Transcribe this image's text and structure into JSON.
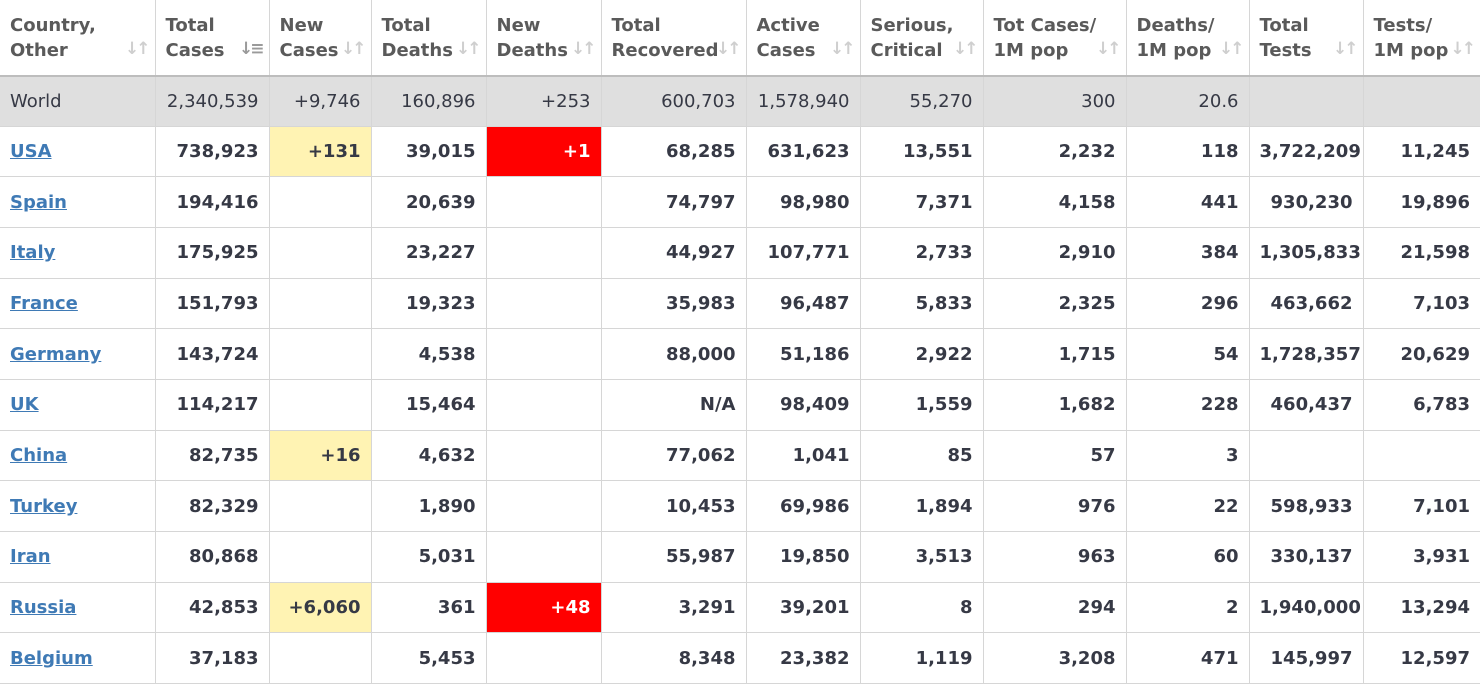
{
  "columns": [
    {
      "line1": "Country,",
      "line2": "Other"
    },
    {
      "line1": "Total",
      "line2": "Cases"
    },
    {
      "line1": "New",
      "line2": "Cases"
    },
    {
      "line1": "Total",
      "line2": "Deaths"
    },
    {
      "line1": "New",
      "line2": "Deaths"
    },
    {
      "line1": "Total",
      "line2": "Recovered"
    },
    {
      "line1": "Active",
      "line2": "Cases"
    },
    {
      "line1": "Serious,",
      "line2": "Critical"
    },
    {
      "line1": "Tot Cases/",
      "line2": "1M pop"
    },
    {
      "line1": "Deaths/",
      "line2": "1M pop"
    },
    {
      "line1": "Total",
      "line2": "Tests"
    },
    {
      "line1": "Tests/",
      "line2": "1M pop"
    }
  ],
  "sort_icon": "sort-arrows-icon",
  "active_sort_column": 1,
  "colors": {
    "link": "#3f7ab5",
    "new_cases_highlight": "#fff3b3",
    "new_deaths_highlight": "#ff0000",
    "world_row_bg": "#dfdfdf"
  },
  "world": [
    "World",
    "2,340,539",
    "+9,746",
    "160,896",
    "+253",
    "600,703",
    "1,578,940",
    "55,270",
    "300",
    "20.6",
    "",
    ""
  ],
  "rows": [
    [
      "USA",
      "738,923",
      "+131",
      "39,015",
      "+1",
      "68,285",
      "631,623",
      "13,551",
      "2,232",
      "118",
      "3,722,209",
      "11,245"
    ],
    [
      "Spain",
      "194,416",
      "",
      "20,639",
      "",
      "74,797",
      "98,980",
      "7,371",
      "4,158",
      "441",
      "930,230",
      "19,896"
    ],
    [
      "Italy",
      "175,925",
      "",
      "23,227",
      "",
      "44,927",
      "107,771",
      "2,733",
      "2,910",
      "384",
      "1,305,833",
      "21,598"
    ],
    [
      "France",
      "151,793",
      "",
      "19,323",
      "",
      "35,983",
      "96,487",
      "5,833",
      "2,325",
      "296",
      "463,662",
      "7,103"
    ],
    [
      "Germany",
      "143,724",
      "",
      "4,538",
      "",
      "88,000",
      "51,186",
      "2,922",
      "1,715",
      "54",
      "1,728,357",
      "20,629"
    ],
    [
      "UK",
      "114,217",
      "",
      "15,464",
      "",
      "N/A",
      "98,409",
      "1,559",
      "1,682",
      "228",
      "460,437",
      "6,783"
    ],
    [
      "China",
      "82,735",
      "+16",
      "4,632",
      "",
      "77,062",
      "1,041",
      "85",
      "57",
      "3",
      "",
      ""
    ],
    [
      "Turkey",
      "82,329",
      "",
      "1,890",
      "",
      "10,453",
      "69,986",
      "1,894",
      "976",
      "22",
      "598,933",
      "7,101"
    ],
    [
      "Iran",
      "80,868",
      "",
      "5,031",
      "",
      "55,987",
      "19,850",
      "3,513",
      "963",
      "60",
      "330,137",
      "3,931"
    ],
    [
      "Russia",
      "42,853",
      "+6,060",
      "361",
      "+48",
      "3,291",
      "39,201",
      "8",
      "294",
      "2",
      "1,940,000",
      "13,294"
    ],
    [
      "Belgium",
      "37,183",
      "",
      "5,453",
      "",
      "8,348",
      "23,382",
      "1,119",
      "3,208",
      "471",
      "145,997",
      "12,597"
    ]
  ]
}
